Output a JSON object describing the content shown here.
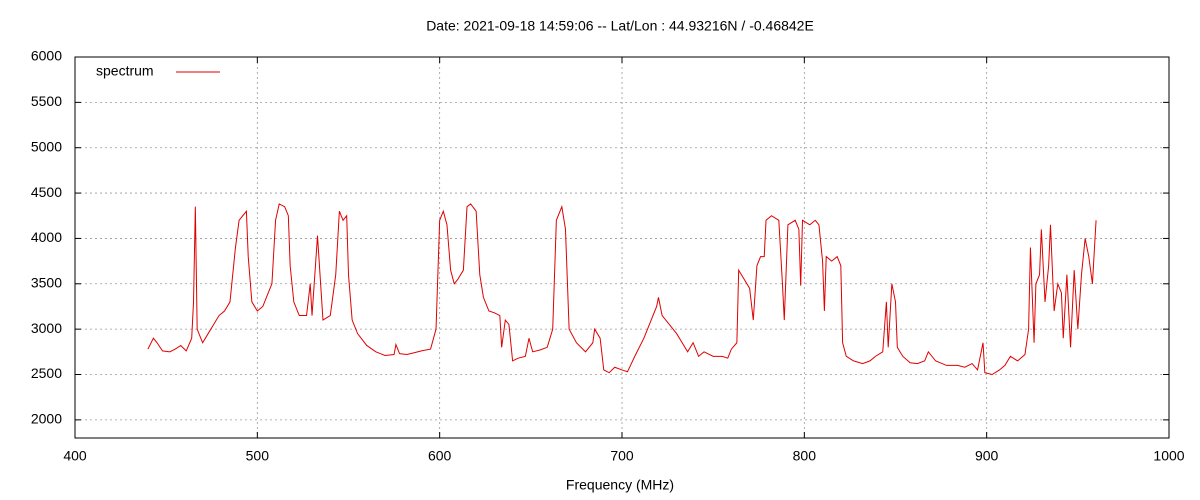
{
  "chart_data": {
    "type": "line",
    "title": "Date: 2021-09-18 14:59:06  --  Lat/Lon : 44.93216N / -0.46842E",
    "xlabel": "Frequency (MHz)",
    "xlim": [
      400,
      1000
    ],
    "xticks": [
      400,
      500,
      600,
      700,
      800,
      900,
      1000
    ],
    "ylim": [
      1800,
      6000
    ],
    "yticks": [
      2000,
      2500,
      3000,
      3500,
      4000,
      4500,
      5000,
      5500,
      6000
    ],
    "grid": true,
    "legend": "top-left",
    "x": [
      440,
      443,
      445,
      448,
      452,
      455,
      458,
      461,
      464,
      465,
      466,
      467,
      470,
      473,
      476,
      479,
      482,
      485,
      488,
      490,
      492,
      494,
      495,
      497,
      500,
      503,
      506,
      508,
      510,
      512,
      515,
      517,
      518,
      520,
      523,
      527,
      529,
      530,
      533,
      536,
      540,
      543,
      545,
      547,
      549,
      550,
      552,
      555,
      560,
      565,
      570,
      575,
      576,
      578,
      582,
      586,
      590,
      595,
      598,
      600,
      602,
      604,
      606,
      608,
      610,
      613,
      615,
      617,
      620,
      622,
      624,
      627,
      630,
      633,
      634,
      636,
      638,
      640,
      643,
      647,
      649,
      651,
      655,
      659,
      662,
      664,
      667,
      669,
      671,
      675,
      680,
      684,
      685,
      688,
      690,
      693,
      696,
      700,
      703,
      707,
      712,
      716,
      719,
      720,
      722,
      726,
      730,
      733,
      736,
      739,
      742,
      745,
      750,
      755,
      758,
      760,
      763,
      764,
      767,
      770,
      772,
      774,
      776,
      778,
      779,
      782,
      786,
      788,
      789,
      791,
      795,
      797,
      798,
      799,
      803,
      806,
      808,
      810,
      811,
      812,
      815,
      818,
      820,
      821,
      823,
      827,
      832,
      836,
      839,
      843,
      845,
      846,
      848,
      850,
      851,
      854,
      858,
      862,
      866,
      868,
      872,
      878,
      884,
      888,
      892,
      895,
      898,
      899,
      903,
      907,
      910,
      913,
      917,
      921,
      923,
      924,
      926,
      927,
      929,
      930,
      932,
      934,
      935,
      937,
      939,
      941,
      942,
      944,
      946,
      948,
      950,
      952,
      954,
      956,
      958,
      960
    ],
    "series": [
      {
        "name": "spectrum",
        "color": "#e00000",
        "values": [
          2780,
          2900,
          2850,
          2760,
          2750,
          2780,
          2820,
          2760,
          2900,
          3300,
          4350,
          3000,
          2850,
          2950,
          3050,
          3150,
          3200,
          3300,
          3900,
          4200,
          4250,
          4300,
          3800,
          3300,
          3200,
          3250,
          3400,
          3500,
          4200,
          4380,
          4350,
          4250,
          3700,
          3300,
          3150,
          3150,
          3500,
          3150,
          4030,
          3100,
          3150,
          3600,
          4300,
          4200,
          4250,
          3600,
          3100,
          2950,
          2820,
          2750,
          2710,
          2720,
          2830,
          2730,
          2720,
          2740,
          2760,
          2780,
          3000,
          4200,
          4300,
          4150,
          3650,
          3500,
          3550,
          3650,
          4350,
          4380,
          4300,
          3600,
          3350,
          3200,
          3180,
          3150,
          2800,
          3100,
          3050,
          2650,
          2680,
          2700,
          2900,
          2750,
          2770,
          2800,
          3000,
          4200,
          4350,
          4100,
          3000,
          2850,
          2750,
          2850,
          3000,
          2900,
          2550,
          2520,
          2580,
          2550,
          2530,
          2700,
          2900,
          3100,
          3250,
          3350,
          3150,
          3050,
          2950,
          2850,
          2750,
          2850,
          2700,
          2750,
          2700,
          2700,
          2680,
          2780,
          2850,
          3650,
          3550,
          3450,
          3100,
          3700,
          3800,
          3800,
          4200,
          4250,
          4200,
          3500,
          3100,
          4150,
          4200,
          4100,
          3480,
          4200,
          4150,
          4200,
          4150,
          3750,
          3200,
          3800,
          3750,
          3800,
          3700,
          2850,
          2700,
          2650,
          2620,
          2650,
          2700,
          2750,
          3300,
          2800,
          3500,
          3300,
          2800,
          2700,
          2630,
          2620,
          2650,
          2750,
          2650,
          2600,
          2600,
          2580,
          2620,
          2550,
          2850,
          2520,
          2500,
          2550,
          2600,
          2700,
          2650,
          2720,
          3000,
          3900,
          2850,
          3500,
          3600,
          4100,
          3300,
          3700,
          4150,
          3200,
          3500,
          3400,
          2900,
          3600,
          2800,
          3650,
          3000,
          3600,
          4000,
          3800,
          3500,
          4200
        ]
      }
    ]
  }
}
